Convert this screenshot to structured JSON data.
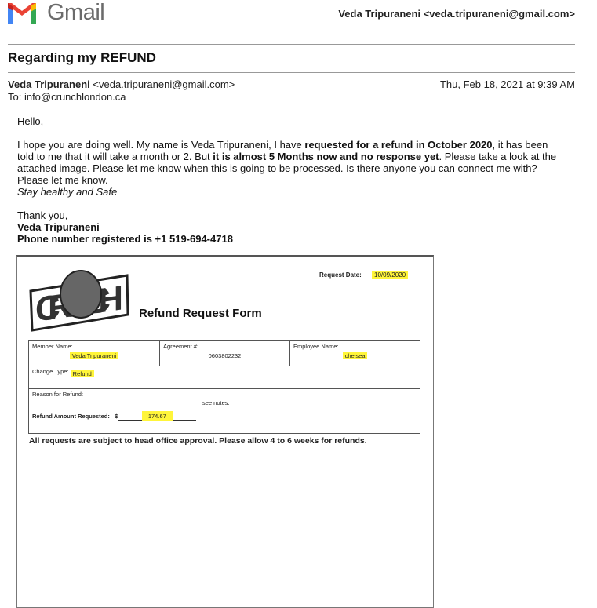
{
  "header": {
    "brand": "Gmail",
    "account": "Veda Tripuraneni <veda.tripuraneni@gmail.com>"
  },
  "email": {
    "subject": "Regarding my REFUND",
    "sender_name": "Veda Tripuraneni",
    "sender_email": "<veda.tripuraneni@gmail.com>",
    "to": "To: info@crunchlondon.ca",
    "date": "Thu, Feb 18, 2021 at 9:39 AM",
    "greeting": "Hello,",
    "para": {
      "s1": "I hope you are doing well. My name is Veda Tripuraneni, I have ",
      "b1": "requested for a refund in October 2020",
      "s2": ", it has been told to me that it will take a month or 2. But ",
      "b2": "it is almost 5 Months now and no response yet",
      "s3": ". Please take a look at the attached image. Please let me know when this is going to be processed. Is there anyone you can connect me with? Please let me know."
    },
    "italic": "Stay healthy and Safe",
    "thanks": "Thank you,",
    "sig_name": "Veda Tripuraneni",
    "sig_phone": "Phone number registered is +1 519-694-4718"
  },
  "form": {
    "logo_text": "CRUNCH",
    "title": "Refund Request Form",
    "request_date_label": "Request Date:",
    "request_date": "10/09/2020",
    "member_label": "Member Name:",
    "member": "Veda  Tripuraneni",
    "agreement_label": "Agreement #:",
    "agreement": "0603802232",
    "employee_label": "Employee Name:",
    "employee": "chelsea",
    "change_label": "Change Type:",
    "change": "Refund",
    "reason_label": "Reason for Refund:",
    "reason": "see notes.",
    "amount_label": "Refund Amount Requested:",
    "currency": "$",
    "amount": "174.67",
    "footer": "All requests are subject to head office approval. Please allow 4 to 6 weeks for refunds."
  },
  "colors": {
    "highlight": "#fff53a"
  }
}
